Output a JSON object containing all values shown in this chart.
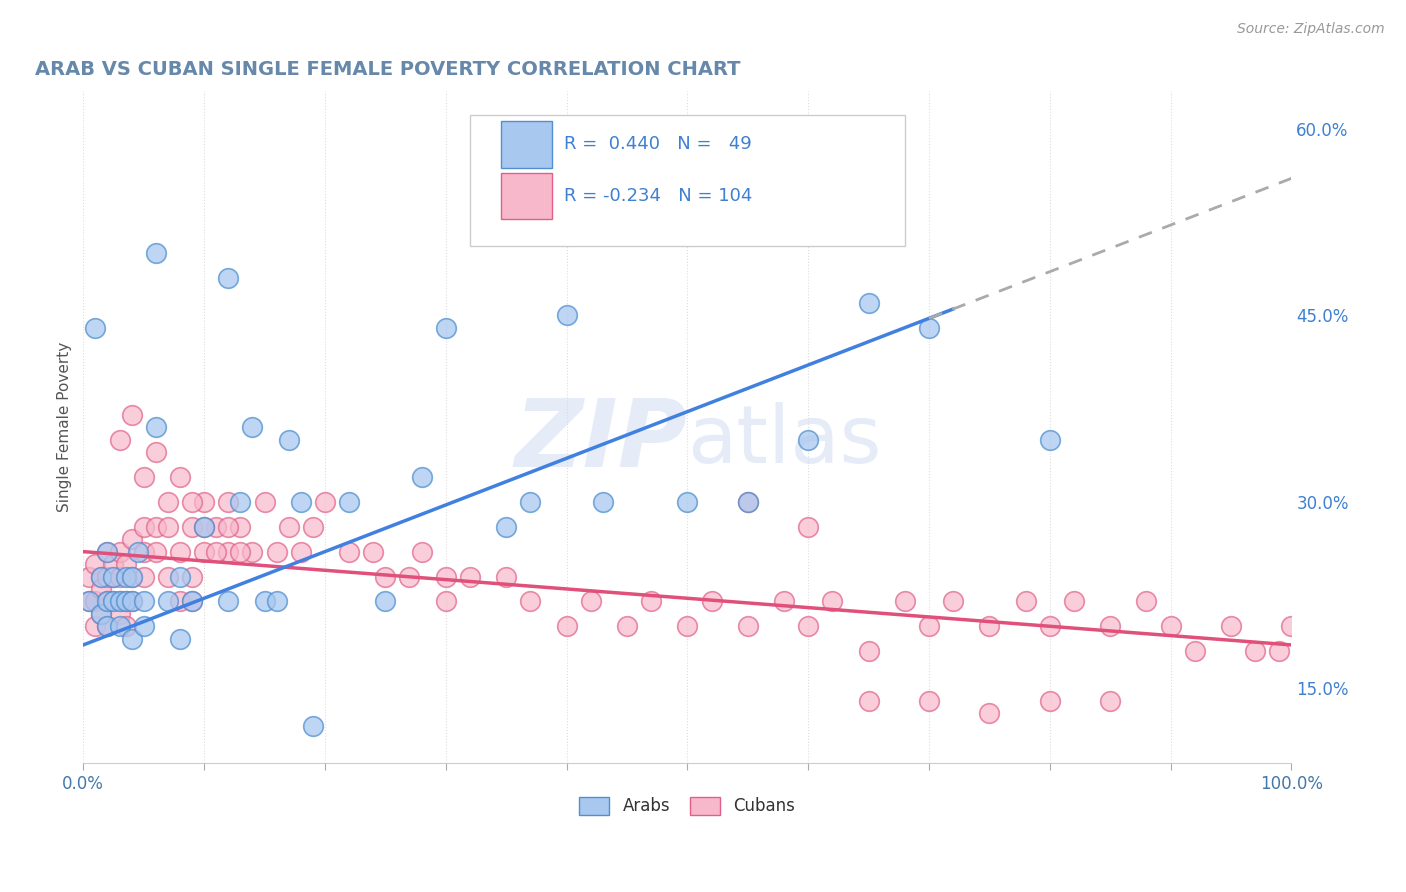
{
  "title": "ARAB VS CUBAN SINGLE FEMALE POVERTY CORRELATION CHART",
  "source_text": "Source: ZipAtlas.com",
  "ylabel": "Single Female Poverty",
  "xlim": [
    0,
    1.0
  ],
  "ylim": [
    0.09,
    0.63
  ],
  "ytick_vals": [
    0.15,
    0.3,
    0.45,
    0.6
  ],
  "ytick_labels": [
    "15.0%",
    "30.0%",
    "45.0%",
    "60.0%"
  ],
  "arab_R": 0.44,
  "arab_N": 49,
  "cuban_R": -0.234,
  "cuban_N": 104,
  "arab_color": "#a8c8f0",
  "arab_edge_color": "#5090d0",
  "arab_line_color": "#4080e0",
  "cuban_color": "#f8b8cc",
  "cuban_edge_color": "#e06088",
  "cuban_line_color": "#e0507a",
  "dash_line_color": "#aaaaaa",
  "legend_color": "#4080d0",
  "title_color": "#6688aa",
  "source_color": "#999999",
  "background_color": "#ffffff",
  "grid_color": "#dddddd",
  "watermark_color": "#ccd8f0",
  "arab_x": [
    0.005,
    0.01,
    0.015,
    0.015,
    0.02,
    0.02,
    0.02,
    0.025,
    0.025,
    0.03,
    0.03,
    0.035,
    0.035,
    0.04,
    0.04,
    0.04,
    0.045,
    0.05,
    0.05,
    0.06,
    0.06,
    0.07,
    0.08,
    0.08,
    0.09,
    0.1,
    0.12,
    0.12,
    0.13,
    0.14,
    0.15,
    0.16,
    0.17,
    0.18,
    0.19,
    0.22,
    0.25,
    0.28,
    0.3,
    0.35,
    0.37,
    0.4,
    0.43,
    0.5,
    0.55,
    0.6,
    0.65,
    0.7,
    0.8
  ],
  "arab_y": [
    0.22,
    0.44,
    0.21,
    0.24,
    0.22,
    0.26,
    0.2,
    0.22,
    0.24,
    0.22,
    0.2,
    0.24,
    0.22,
    0.24,
    0.19,
    0.22,
    0.26,
    0.22,
    0.2,
    0.36,
    0.5,
    0.22,
    0.24,
    0.19,
    0.22,
    0.28,
    0.48,
    0.22,
    0.3,
    0.36,
    0.22,
    0.22,
    0.35,
    0.3,
    0.12,
    0.3,
    0.22,
    0.32,
    0.44,
    0.28,
    0.3,
    0.45,
    0.3,
    0.3,
    0.3,
    0.35,
    0.46,
    0.44,
    0.35
  ],
  "cuban_x": [
    0.005,
    0.005,
    0.01,
    0.01,
    0.01,
    0.015,
    0.015,
    0.015,
    0.02,
    0.02,
    0.02,
    0.02,
    0.025,
    0.025,
    0.025,
    0.03,
    0.03,
    0.03,
    0.03,
    0.035,
    0.035,
    0.035,
    0.04,
    0.04,
    0.04,
    0.05,
    0.05,
    0.05,
    0.06,
    0.06,
    0.07,
    0.07,
    0.08,
    0.08,
    0.09,
    0.09,
    0.09,
    0.1,
    0.1,
    0.11,
    0.12,
    0.12,
    0.13,
    0.14,
    0.15,
    0.16,
    0.17,
    0.18,
    0.19,
    0.2,
    0.22,
    0.24,
    0.25,
    0.27,
    0.28,
    0.3,
    0.3,
    0.32,
    0.35,
    0.37,
    0.4,
    0.42,
    0.45,
    0.47,
    0.5,
    0.52,
    0.55,
    0.58,
    0.6,
    0.62,
    0.65,
    0.68,
    0.7,
    0.72,
    0.75,
    0.78,
    0.8,
    0.82,
    0.85,
    0.88,
    0.9,
    0.92,
    0.95,
    0.97,
    0.99,
    1.0,
    0.03,
    0.04,
    0.05,
    0.06,
    0.07,
    0.08,
    0.09,
    0.1,
    0.11,
    0.12,
    0.13,
    0.55,
    0.6,
    0.65,
    0.7,
    0.75,
    0.8,
    0.85
  ],
  "cuban_y": [
    0.24,
    0.22,
    0.25,
    0.2,
    0.22,
    0.24,
    0.21,
    0.23,
    0.24,
    0.22,
    0.2,
    0.26,
    0.24,
    0.22,
    0.25,
    0.24,
    0.22,
    0.26,
    0.21,
    0.25,
    0.22,
    0.2,
    0.27,
    0.24,
    0.22,
    0.26,
    0.28,
    0.24,
    0.28,
    0.26,
    0.28,
    0.24,
    0.26,
    0.22,
    0.28,
    0.24,
    0.22,
    0.3,
    0.26,
    0.28,
    0.3,
    0.26,
    0.28,
    0.26,
    0.3,
    0.26,
    0.28,
    0.26,
    0.28,
    0.3,
    0.26,
    0.26,
    0.24,
    0.24,
    0.26,
    0.24,
    0.22,
    0.24,
    0.24,
    0.22,
    0.2,
    0.22,
    0.2,
    0.22,
    0.2,
    0.22,
    0.2,
    0.22,
    0.2,
    0.22,
    0.18,
    0.22,
    0.2,
    0.22,
    0.2,
    0.22,
    0.2,
    0.22,
    0.2,
    0.22,
    0.2,
    0.18,
    0.2,
    0.18,
    0.18,
    0.2,
    0.35,
    0.37,
    0.32,
    0.34,
    0.3,
    0.32,
    0.3,
    0.28,
    0.26,
    0.28,
    0.26,
    0.3,
    0.28,
    0.14,
    0.14,
    0.13,
    0.14,
    0.14
  ]
}
